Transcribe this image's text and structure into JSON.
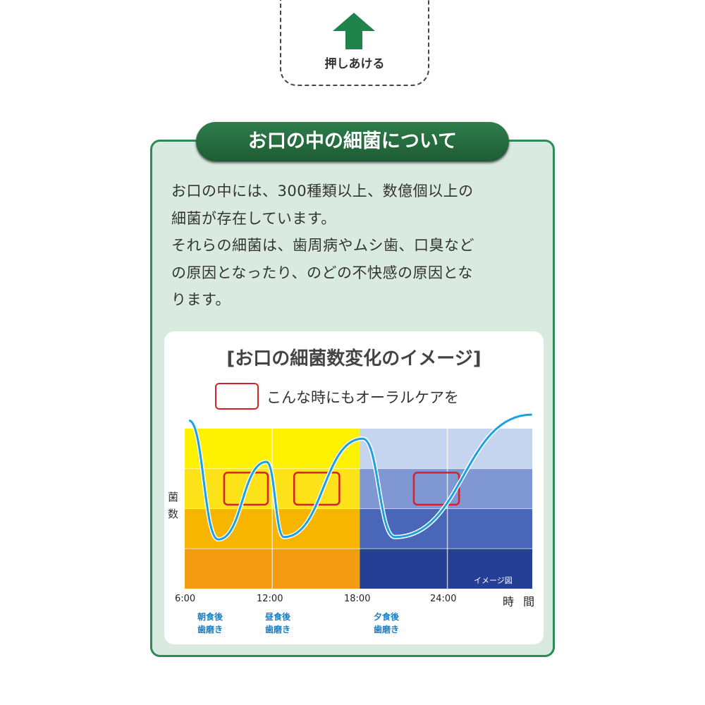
{
  "push": {
    "label": "押しあける",
    "icon": "up-arrow-icon",
    "color": "#1e8449"
  },
  "section": {
    "title": "お口の中の細菌について",
    "paragraphs": [
      "お口の中には、300種類以上、数億個以上の",
      "細菌が存在しています。",
      "それらの細菌は、歯周病やムシ歯、口臭など",
      "の原因となったり、のどの不快感の原因とな",
      "ります。"
    ]
  },
  "chart_data": {
    "type": "line",
    "title": "[お口の細菌数変化のイメージ]",
    "legend": {
      "label": "こんな時にもオーラルケアを",
      "color": "#d2232a"
    },
    "xlabel": "時 間",
    "ylabel": "菌数",
    "x_ticks": [
      "6:00",
      "12:00",
      "18:00",
      "24:00"
    ],
    "xlim": [
      6,
      30
    ],
    "ylim": [
      0,
      4
    ],
    "grid": true,
    "annotation": "イメージ図",
    "series": [
      {
        "color": "#1ea0e0",
        "x": [
          6.3,
          8.3,
          11.6,
          12.8,
          18.2,
          20.4,
          29.8
        ],
        "y": [
          4.2,
          1.23,
          3.17,
          1.29,
          3.75,
          1.29,
          4.35
        ]
      }
    ],
    "highlights": [
      {
        "x": [
          8.7,
          11.7
        ],
        "y": [
          2.1,
          2.9
        ]
      },
      {
        "x": [
          13.5,
          16.6
        ],
        "y": [
          2.1,
          2.9
        ]
      },
      {
        "x": [
          21.7,
          24.8
        ],
        "y": [
          2.1,
          2.9
        ]
      }
    ],
    "events": [
      {
        "time": "朝食後",
        "action": "歯磨き"
      },
      {
        "time": "昼食後",
        "action": "歯磨き"
      },
      {
        "time": "夕食後",
        "action": "歯磨き"
      }
    ],
    "colors": {
      "day": [
        "#fff200",
        "#fde21a",
        "#f7b500",
        "#f39c12"
      ],
      "night": [
        "#c5d5f0",
        "#7f97d3",
        "#4966b8",
        "#253f95"
      ]
    }
  }
}
